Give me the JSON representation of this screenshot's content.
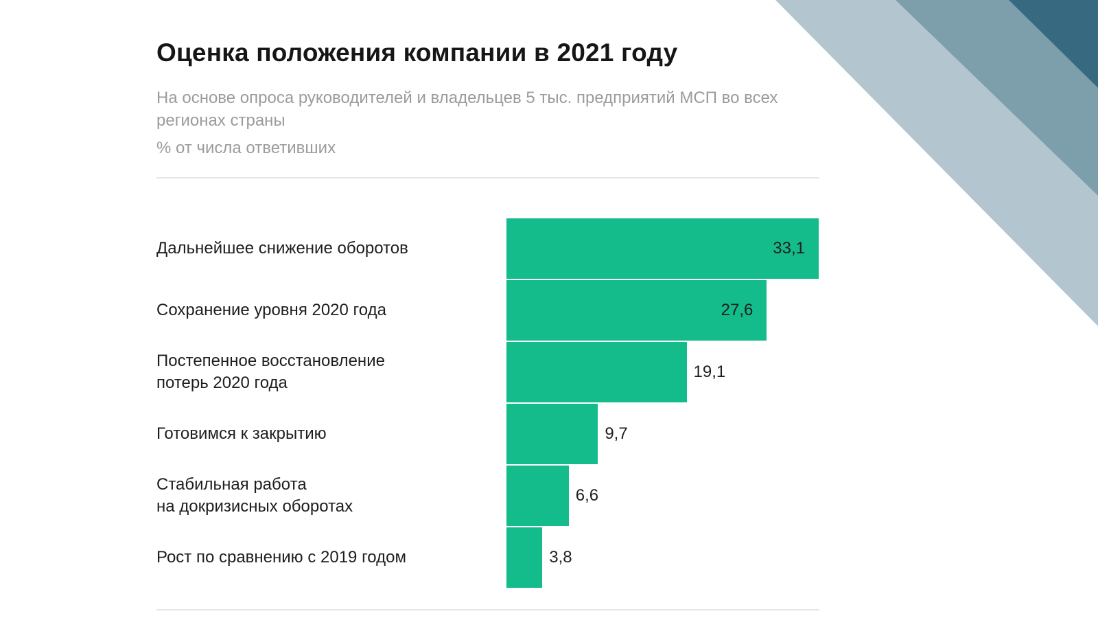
{
  "header": {
    "title": "Оценка положения компании в 2021 году",
    "subtitle": "На основе опроса руководителей и владельцев 5 тыс. предприятий МСП во всех регионах страны",
    "unit_note": "% от числа ответивших"
  },
  "colors": {
    "bar": "#13bc8a",
    "title": "#161616",
    "subtitle": "#9b9b9b",
    "label": "#1e1e1e",
    "rule": "#e6e6e6",
    "decor_light": "#b3c5ce",
    "decor_mid": "#7d9eab",
    "decor_dark": "#376a80"
  },
  "chart_data": {
    "type": "bar",
    "orientation": "horizontal",
    "title": "Оценка положения компании в 2021 году",
    "xlabel": "",
    "ylabel": "",
    "unit": "% от числа ответивших",
    "xlim": [
      0,
      33.1
    ],
    "grid": false,
    "categories": [
      "Дальнейшее снижение оборотов",
      "Сохранение уровня 2020 года",
      "Постепенное восстановление\nпотерь 2020 года",
      "Готовимся к закрытию",
      "Стабильная работа\nна докризисных оборотах",
      "Рост по сравнению с 2019 годом"
    ],
    "values": [
      33.1,
      27.6,
      19.1,
      9.7,
      6.6,
      3.8
    ],
    "value_labels": [
      "33,1",
      "27,6",
      "19,1",
      "9,7",
      "6,6",
      "3,8"
    ],
    "label_position": [
      "inside",
      "inside",
      "outside",
      "outside",
      "outside",
      "outside"
    ]
  }
}
